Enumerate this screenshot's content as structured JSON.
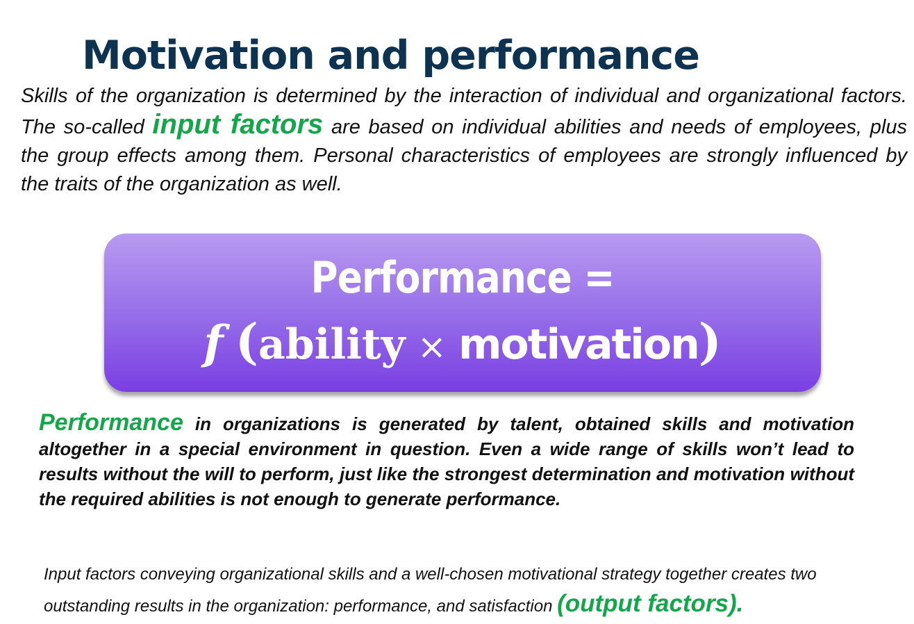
{
  "title": "Motivation and performance",
  "intro": {
    "text_before": "Skills of the organization is determined by the interaction of individual and organizational factors. The so-called ",
    "highlight": "input factors",
    "text_after": " are based on individual abilities and needs of employees, plus the group effects among them. Personal characteristics of employees are strongly influenced by the traits of the organization as well."
  },
  "formula": {
    "line1": "Performance =",
    "function_symbol": "f",
    "open_paren": "(",
    "ability": "ability",
    "times": "×",
    "motivation": "motivation",
    "close_paren": ")"
  },
  "performance_paragraph": {
    "highlight": "Performance",
    "text": " in organizations is generated by talent, obtained skills and motivation altogether in a special environment in question. Even a wide range of skills won’t lead to results without the will to perform, just like the strongest determination and motivation without the required abilities is not enough to generate performance."
  },
  "output_paragraph": {
    "text": "Input factors conveying organizational skills and a well-chosen motivational strategy together creates two outstanding results in the organization: performance, and satisfaction ",
    "highlight": "(output factors)."
  },
  "colors": {
    "title": "#0d3350",
    "highlight_green": "#14a64a",
    "box_top": "#b89af0",
    "box_bottom": "#7a3fe3"
  }
}
